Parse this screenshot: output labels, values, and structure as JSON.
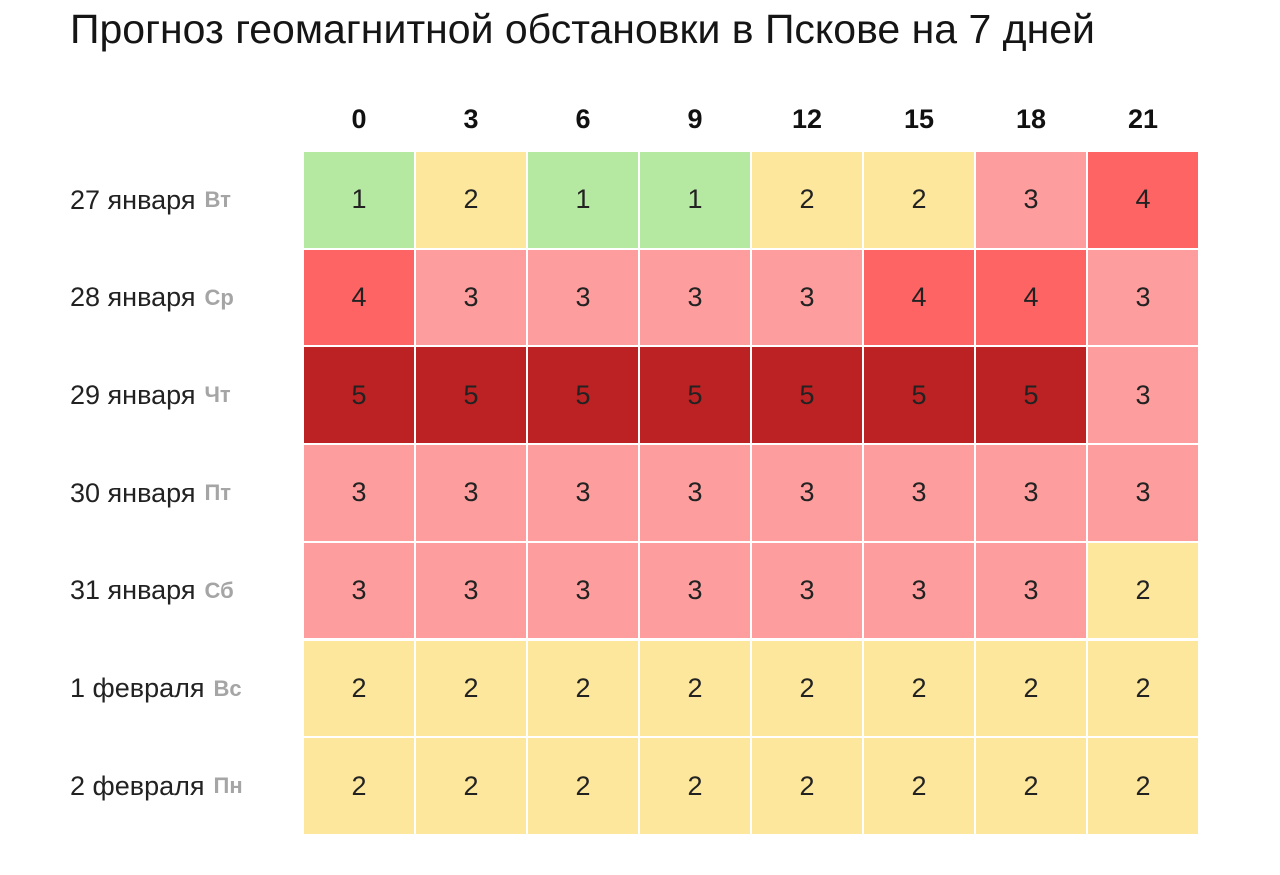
{
  "title": "Прогноз геомагнитной обстановки в Пскове на 7 дней",
  "chart_data": {
    "type": "heatmap",
    "title": "Прогноз геомагнитной обстановки в Пскове на 7 дней",
    "columns": [
      "0",
      "3",
      "6",
      "9",
      "12",
      "15",
      "18",
      "21"
    ],
    "rows": [
      {
        "date": "27 января",
        "dow": "Вт"
      },
      {
        "date": "28 января",
        "dow": "Ср"
      },
      {
        "date": "29 января",
        "dow": "Чт"
      },
      {
        "date": "30 января",
        "dow": "Пт"
      },
      {
        "date": "31 января",
        "dow": "Сб"
      },
      {
        "date": "1 февраля",
        "dow": "Вс"
      },
      {
        "date": "2 февраля",
        "dow": "Пн"
      }
    ],
    "values": [
      [
        1,
        2,
        1,
        1,
        2,
        2,
        3,
        4
      ],
      [
        4,
        3,
        3,
        3,
        3,
        4,
        4,
        3
      ],
      [
        5,
        5,
        5,
        5,
        5,
        5,
        5,
        3
      ],
      [
        3,
        3,
        3,
        3,
        3,
        3,
        3,
        3
      ],
      [
        3,
        3,
        3,
        3,
        3,
        3,
        3,
        2
      ],
      [
        2,
        2,
        2,
        2,
        2,
        2,
        2,
        2
      ],
      [
        2,
        2,
        2,
        2,
        2,
        2,
        2,
        2
      ]
    ],
    "colors": {
      "1": "#b5e8a0",
      "2": "#fde79c",
      "3": "#fe9d9d",
      "4": "#fe6464",
      "5": "#bc2223"
    }
  }
}
